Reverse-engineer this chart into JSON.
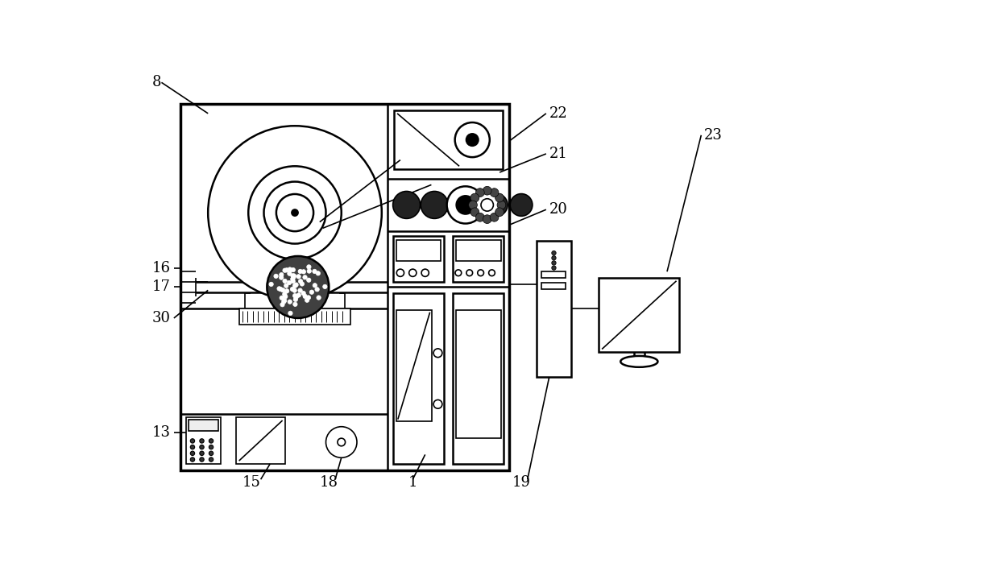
{
  "bg_color": "#ffffff",
  "line_color": "#000000",
  "label_fontsize": 13,
  "fig_width": 12.4,
  "fig_height": 6.99
}
